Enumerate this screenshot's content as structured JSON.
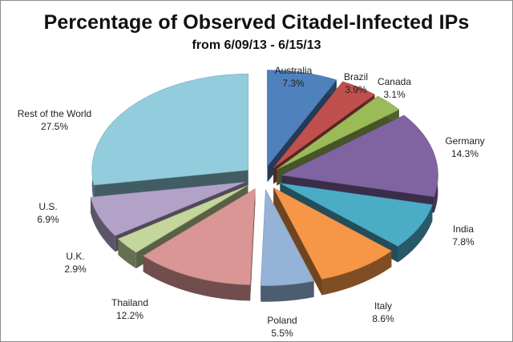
{
  "chart_data": {
    "type": "pie",
    "title": "Percentage of Observed Citadel-Infected IPs",
    "subtitle": "from 6/09/13 - 6/15/13",
    "exploded": true,
    "three_d": true,
    "slices": [
      {
        "label": "Australia",
        "value": 7.3,
        "value_label": "7.3%",
        "color": "#4f81bd"
      },
      {
        "label": "Brazil",
        "value": 3.9,
        "value_label": "3.9%",
        "color": "#c0504d"
      },
      {
        "label": "Canada",
        "value": 3.1,
        "value_label": "3.1%",
        "color": "#9bbb59"
      },
      {
        "label": "Germany",
        "value": 14.3,
        "value_label": "14.3%",
        "color": "#8064a2"
      },
      {
        "label": "India",
        "value": 7.8,
        "value_label": "7.8%",
        "color": "#4bacc6"
      },
      {
        "label": "Italy",
        "value": 8.6,
        "value_label": "8.6%",
        "color": "#f79646"
      },
      {
        "label": "Poland",
        "value": 5.5,
        "value_label": "5.5%",
        "color": "#95b3d7"
      },
      {
        "label": "Thailand",
        "value": 12.2,
        "value_label": "12.2%",
        "color": "#d99694"
      },
      {
        "label": "U.K.",
        "value": 2.9,
        "value_label": "2.9%",
        "color": "#c3d69b"
      },
      {
        "label": "U.S.",
        "value": 6.9,
        "value_label": "6.9%",
        "color": "#b2a2c7"
      },
      {
        "label": "Rest of the World",
        "value": 27.5,
        "value_label": "27.5%",
        "color": "#93cddd"
      }
    ]
  }
}
